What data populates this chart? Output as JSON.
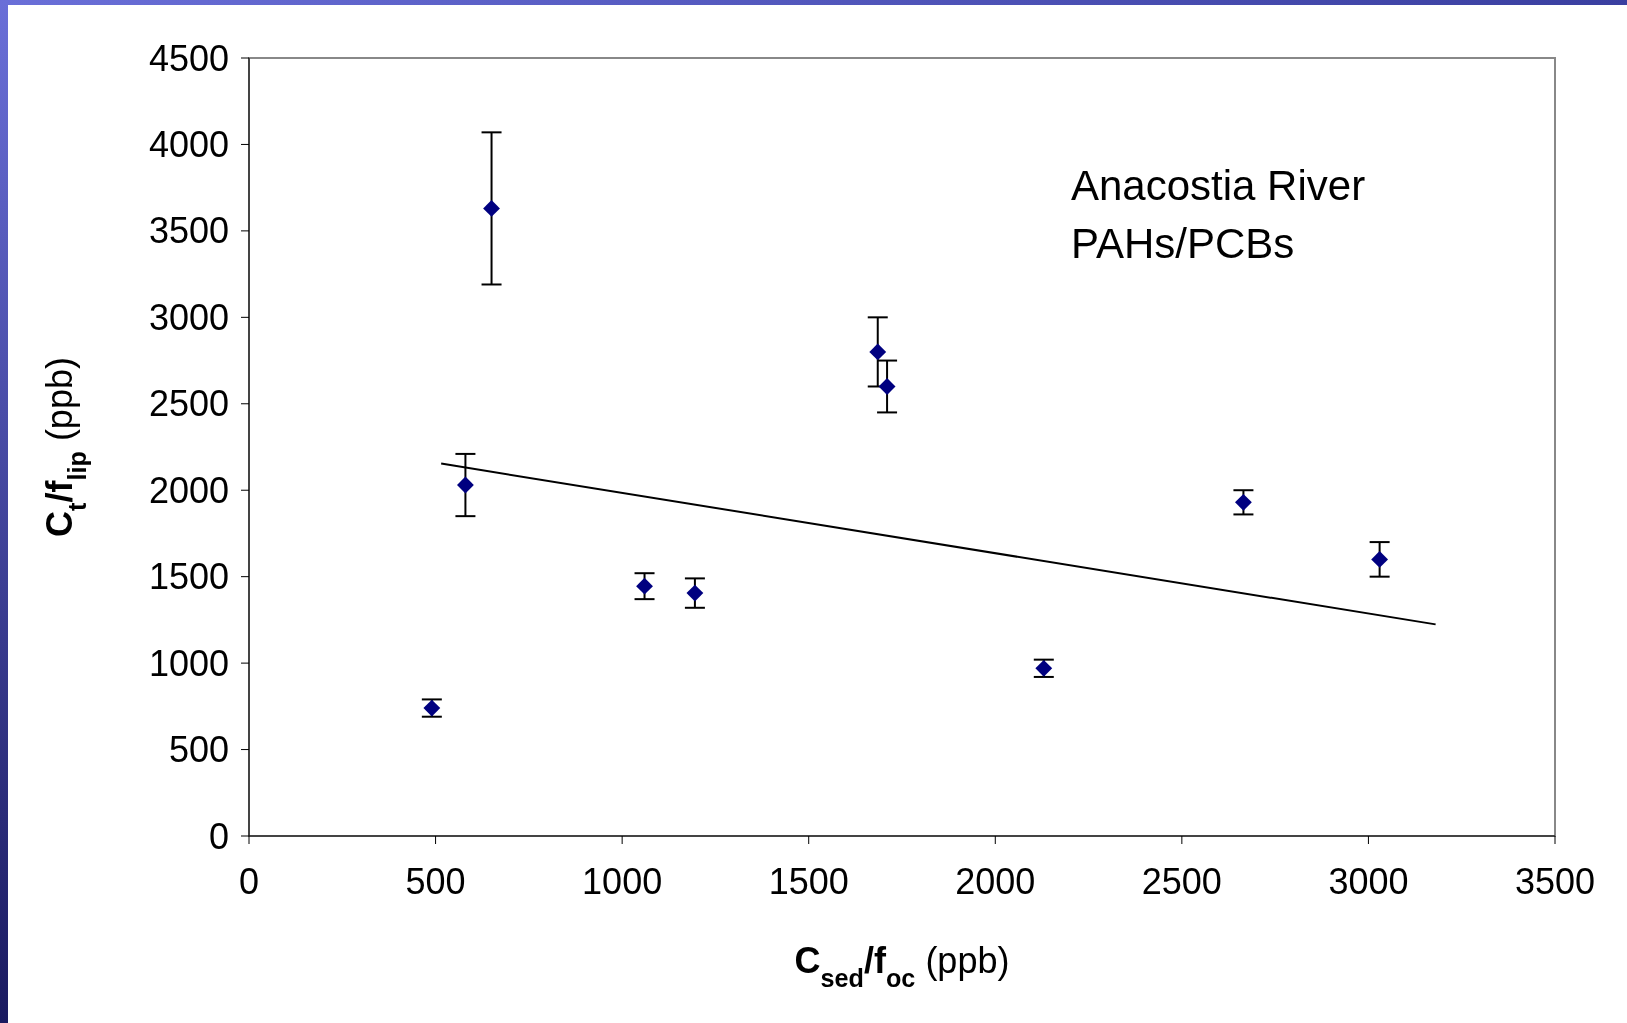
{
  "chart_data": {
    "type": "scatter",
    "xlabel": "C$_{sed}$/f$_{oc}$ (ppb)",
    "ylabel": "C$_{t}$/f$_{lip}$ (ppb)",
    "annotations": [
      "Anacostia River\nPAHs/PCBs"
    ],
    "xlim": [
      0,
      3500
    ],
    "xticks": [
      0,
      500,
      1000,
      1500,
      2000,
      2500,
      3000,
      3500
    ],
    "ylim": [
      0,
      4500
    ],
    "yticks": [
      0,
      500,
      1000,
      1500,
      2000,
      2500,
      3000,
      3500,
      4000,
      4500
    ],
    "grid": false,
    "series": [
      {
        "color": "#000080",
        "marker": "diamond",
        "x": [
          490,
          580,
          650,
          1060,
          1195,
          1685,
          1710,
          2130,
          2665,
          3030
        ],
        "values": [
          740,
          2030,
          3630,
          1445,
          1405,
          2800,
          2600,
          970,
          1930,
          1600
        ],
        "errors": [
          50,
          180,
          440,
          75,
          85,
          200,
          150,
          50,
          70,
          100
        ]
      },
      {
        "type": "line",
        "color": "#000000",
        "marker": "none",
        "x": [
          515,
          3180
        ],
        "values": [
          2154,
          1224
        ]
      }
    ]
  }
}
